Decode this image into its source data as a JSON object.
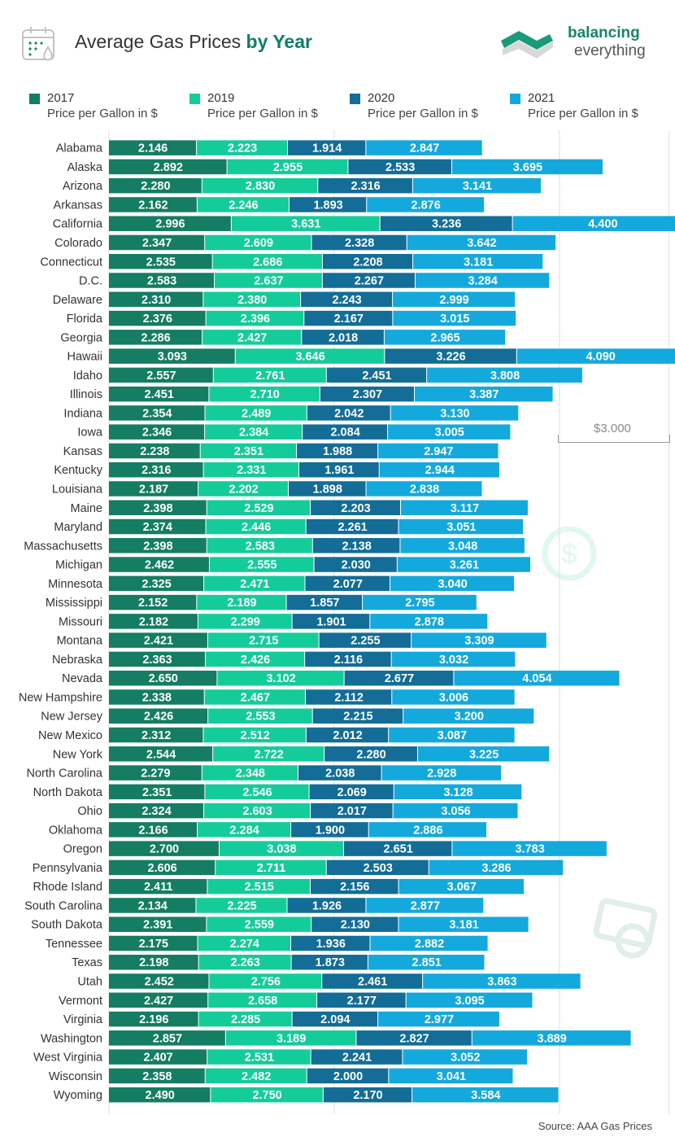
{
  "header": {
    "title_main": "Average Gas Prices ",
    "title_bold": "by Year",
    "brand_line1": "balancing",
    "brand_line2": "everything"
  },
  "legend": [
    {
      "year": "2017",
      "sub": "Price per Gallon in $",
      "color": "#147d63"
    },
    {
      "year": "2019",
      "sub": "Price per Gallon in $",
      "color": "#14cc9a"
    },
    {
      "year": "2020",
      "sub": "Price per Gallon in $",
      "color": "#136d96"
    },
    {
      "year": "2021",
      "sub": "Price per Gallon in $",
      "color": "#14a9dc"
    }
  ],
  "annotation": {
    "text": "$3.000"
  },
  "source": "Source: AAA Gas Prices",
  "chart_data": {
    "type": "bar",
    "orientation": "horizontal",
    "stacked": true,
    "grid": true,
    "series": [
      {
        "name": "2017",
        "color": "#147d63",
        "values": [
          2.146,
          2.892,
          2.28,
          2.162,
          2.996,
          2.347,
          2.535,
          2.583,
          2.31,
          2.376,
          2.286,
          3.093,
          2.557,
          2.451,
          2.354,
          2.346,
          2.238,
          2.316,
          2.187,
          2.398,
          2.374,
          2.398,
          2.462,
          2.325,
          2.152,
          2.182,
          2.421,
          2.363,
          2.65,
          2.338,
          2.426,
          2.312,
          2.544,
          2.279,
          2.351,
          2.324,
          2.166,
          2.7,
          2.606,
          2.411,
          2.134,
          2.391,
          2.175,
          2.198,
          2.452,
          2.427,
          2.196,
          2.857,
          2.407,
          2.358,
          2.49
        ]
      },
      {
        "name": "2019",
        "color": "#14cc9a",
        "values": [
          2.223,
          2.955,
          2.83,
          2.246,
          3.631,
          2.609,
          2.686,
          2.637,
          2.38,
          2.396,
          2.427,
          3.646,
          2.761,
          2.71,
          2.489,
          2.384,
          2.351,
          2.331,
          2.202,
          2.529,
          2.446,
          2.583,
          2.555,
          2.471,
          2.189,
          2.299,
          2.715,
          2.426,
          3.102,
          2.467,
          2.553,
          2.512,
          2.722,
          2.348,
          2.546,
          2.603,
          2.284,
          3.038,
          2.711,
          2.515,
          2.225,
          2.559,
          2.274,
          2.263,
          2.756,
          2.658,
          2.285,
          3.189,
          2.531,
          2.482,
          2.75
        ]
      },
      {
        "name": "2020",
        "color": "#136d96",
        "values": [
          1.914,
          2.533,
          2.316,
          1.893,
          3.236,
          2.328,
          2.208,
          2.267,
          2.243,
          2.167,
          2.018,
          3.226,
          2.451,
          2.307,
          2.042,
          2.084,
          1.988,
          1.961,
          1.898,
          2.203,
          2.261,
          2.138,
          2.03,
          2.077,
          1.857,
          1.901,
          2.255,
          2.116,
          2.677,
          2.112,
          2.215,
          2.012,
          2.28,
          2.038,
          2.069,
          2.017,
          1.9,
          2.651,
          2.503,
          2.156,
          1.926,
          2.13,
          1.936,
          1.873,
          2.461,
          2.177,
          2.094,
          2.827,
          2.241,
          2.0,
          2.17
        ]
      },
      {
        "name": "2021",
        "color": "#14a9dc",
        "values": [
          2.847,
          3.695,
          3.141,
          2.876,
          4.4,
          3.642,
          3.181,
          3.284,
          2.999,
          3.015,
          2.965,
          4.09,
          3.808,
          3.387,
          3.13,
          3.005,
          2.947,
          2.944,
          2.838,
          3.117,
          3.051,
          3.048,
          3.261,
          3.04,
          2.795,
          2.878,
          3.309,
          3.032,
          4.054,
          3.006,
          3.2,
          3.087,
          3.225,
          2.928,
          3.128,
          3.056,
          2.886,
          3.783,
          3.286,
          3.067,
          2.877,
          3.181,
          2.882,
          2.851,
          3.863,
          3.095,
          2.977,
          3.889,
          3.052,
          3.041,
          3.584
        ]
      }
    ],
    "categories": [
      "Alabama",
      "Alaska",
      "Arizona",
      "Arkansas",
      "California",
      "Colorado",
      "Connecticut",
      "D.C.",
      "Delaware",
      "Florida",
      "Georgia",
      "Hawaii",
      "Idaho",
      "Illinois",
      "Indiana",
      "Iowa",
      "Kansas",
      "Kentucky",
      "Louisiana",
      "Maine",
      "Maryland",
      "Massachusetts",
      "Michigan",
      "Minnesota",
      "Mississippi",
      "Missouri",
      "Montana",
      "Nebraska",
      "Nevada",
      "New Hampshire",
      "New Jersey",
      "New Mexico",
      "New York",
      "North Carolina",
      "North Dakota",
      "Ohio",
      "Oklahoma",
      "Oregon",
      "Pennsylvania",
      "Rhode Island",
      "South Carolina",
      "South Dakota",
      "Tennessee",
      "Texas",
      "Utah",
      "Vermont",
      "Virginia",
      "Washington",
      "West Virginia",
      "Wisconsin",
      "Wyoming"
    ]
  }
}
